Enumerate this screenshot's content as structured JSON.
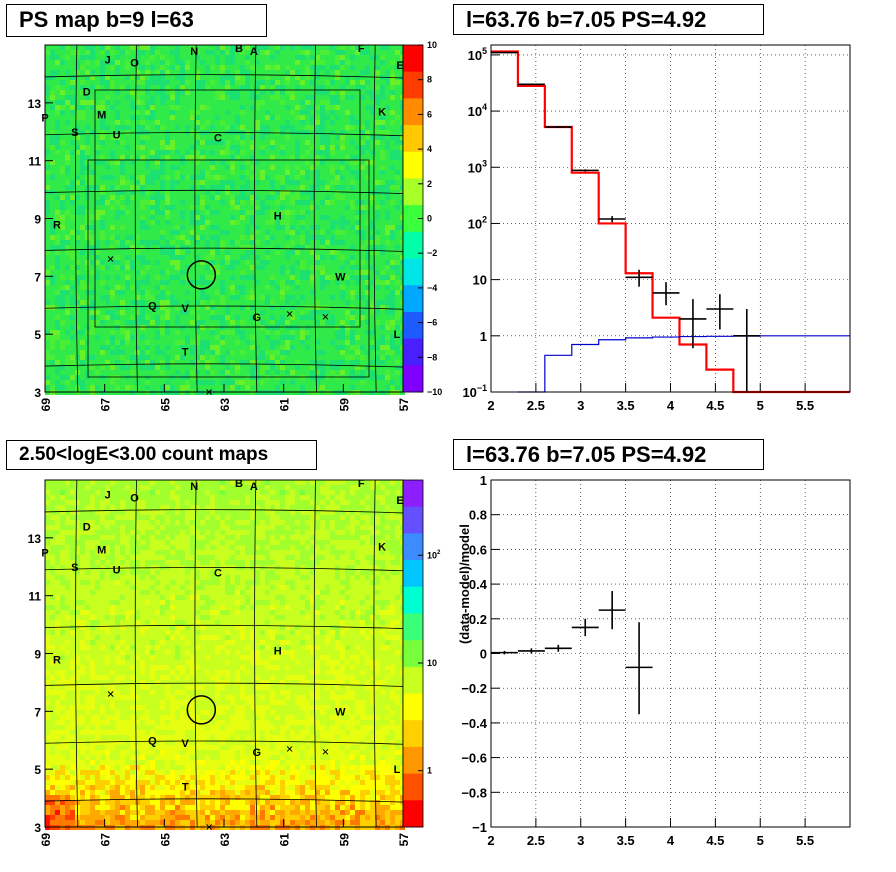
{
  "panels": {
    "top_left_title": "PS map b=9 l=63",
    "top_right_title": "l=63.76 b=7.05 PS=4.92",
    "bottom_left_title": "2.50<logE<3.00 count maps",
    "bottom_right_title": "l=63.76 b=7.05 PS=4.92"
  },
  "chart_data": [
    {
      "id": "ps-map",
      "type": "heatmap",
      "title": "PS map b=9 l=63",
      "x_ticks": [
        "69",
        "67",
        "65",
        "63",
        "61",
        "59",
        "57"
      ],
      "y_ticks": [
        "3",
        "5",
        "7",
        "9",
        "11",
        "13"
      ],
      "xlim": [
        69,
        57
      ],
      "ylim": [
        3,
        15
      ],
      "colorbar": {
        "range": [
          -10,
          10
        ],
        "ticks": [
          "10",
          "8",
          "6",
          "4",
          "2",
          "0",
          "−2",
          "−4",
          "−6",
          "−8",
          "−10"
        ],
        "palette": [
          "#8000ff",
          "#4a1fff",
          "#1c5cff",
          "#00a8ff",
          "#00e5e5",
          "#00ffa8",
          "#3cff3c",
          "#a8ff28",
          "#ffff00",
          "#ffc800",
          "#ff8c00",
          "#ff3c00",
          "#ff0000"
        ]
      },
      "dominant_color": "#2ee84a",
      "source_labels": [
        {
          "text": "J",
          "l": 66.9,
          "b": 14.5
        },
        {
          "text": "O",
          "l": 66.0,
          "b": 14.4
        },
        {
          "text": "N",
          "l": 64.0,
          "b": 14.8
        },
        {
          "text": "B",
          "l": 62.5,
          "b": 14.9
        },
        {
          "text": "A",
          "l": 62.0,
          "b": 14.8
        },
        {
          "text": "F",
          "l": 58.4,
          "b": 14.9
        },
        {
          "text": "E",
          "l": 57.1,
          "b": 14.3
        },
        {
          "text": "D",
          "l": 67.6,
          "b": 13.4
        },
        {
          "text": "K",
          "l": 57.7,
          "b": 12.7
        },
        {
          "text": "P",
          "l": 69.0,
          "b": 12.5
        },
        {
          "text": "M",
          "l": 67.1,
          "b": 12.6
        },
        {
          "text": "S",
          "l": 68.0,
          "b": 12.0
        },
        {
          "text": "U",
          "l": 66.6,
          "b": 11.9
        },
        {
          "text": "C",
          "l": 63.2,
          "b": 11.8
        },
        {
          "text": "H",
          "l": 61.2,
          "b": 9.1
        },
        {
          "text": "R",
          "l": 68.6,
          "b": 8.8
        },
        {
          "text": "W",
          "l": 59.1,
          "b": 7.0
        },
        {
          "text": "Q",
          "l": 65.4,
          "b": 6.0
        },
        {
          "text": "V",
          "l": 64.3,
          "b": 5.9
        },
        {
          "text": "G",
          "l": 61.9,
          "b": 5.6
        },
        {
          "text": "L",
          "l": 57.2,
          "b": 5.0
        },
        {
          "text": "T",
          "l": 64.3,
          "b": 4.4
        }
      ],
      "markers": [
        {
          "l": 66.8,
          "b": 7.6
        },
        {
          "l": 60.8,
          "b": 5.7
        },
        {
          "l": 59.6,
          "b": 5.6
        },
        {
          "l": 63.5,
          "b": 3.0
        }
      ],
      "circle": {
        "l": 63.76,
        "b": 7.05
      }
    },
    {
      "id": "spectrum",
      "type": "line",
      "title": "l=63.76 b=7.05 PS=4.92",
      "xlim": [
        2,
        6
      ],
      "ylim": [
        0.1,
        150000
      ],
      "y_scale": "log",
      "x_ticks": [
        "2",
        "2.5",
        "3",
        "3.5",
        "4",
        "4.5",
        "5",
        "5.5"
      ],
      "y_ticks": [
        {
          "value": 0.1,
          "base": "10",
          "exp": "−1"
        },
        {
          "value": 1,
          "base": "1",
          "exp": ""
        },
        {
          "value": 10,
          "base": "10",
          "exp": ""
        },
        {
          "value": 100,
          "base": "10",
          "exp": "2"
        },
        {
          "value": 1000,
          "base": "10",
          "exp": "3"
        },
        {
          "value": 10000,
          "base": "10",
          "exp": "4"
        },
        {
          "value": 100000,
          "base": "10",
          "exp": "5"
        }
      ],
      "grid": true,
      "data_points": [
        {
          "x": 2.15,
          "y": 110000,
          "xerr": 0.15,
          "ylo": 109000,
          "yhi": 111000
        },
        {
          "x": 2.45,
          "y": 30000,
          "xerr": 0.15,
          "ylo": 29500,
          "yhi": 30500
        },
        {
          "x": 2.75,
          "y": 5200,
          "xerr": 0.15,
          "ylo": 5000,
          "yhi": 5400
        },
        {
          "x": 3.05,
          "y": 880,
          "xerr": 0.15,
          "ylo": 840,
          "yhi": 920
        },
        {
          "x": 3.35,
          "y": 120,
          "xerr": 0.15,
          "ylo": 105,
          "yhi": 135
        },
        {
          "x": 3.65,
          "y": 11,
          "xerr": 0.15,
          "ylo": 7.5,
          "yhi": 15
        },
        {
          "x": 3.95,
          "y": 5.8,
          "xerr": 0.15,
          "ylo": 3.5,
          "yhi": 9
        },
        {
          "x": 4.25,
          "y": 2.0,
          "xerr": 0.15,
          "ylo": 0.6,
          "yhi": 4.5
        },
        {
          "x": 4.55,
          "y": 3.0,
          "xerr": 0.15,
          "ylo": 1.3,
          "yhi": 5.5
        },
        {
          "x": 4.85,
          "y": 1.0,
          "xerr": 0.15,
          "ylo": 0.1,
          "yhi": 3.0
        }
      ],
      "series": [
        {
          "color": "#ff0000",
          "edges": [
            2.0,
            2.3,
            2.6,
            2.9,
            3.2,
            3.5,
            3.8,
            4.1,
            4.4,
            4.7,
            6.0
          ],
          "values": [
            115000,
            28000,
            5200,
            800,
            100,
            13,
            2.1,
            0.7,
            0.25,
            0.1
          ]
        },
        {
          "color": "#0000cc",
          "edges": [
            2.3,
            2.6,
            2.9,
            3.2,
            3.5,
            3.8,
            4.1,
            4.4,
            4.7,
            5.0,
            6.0
          ],
          "values": [
            0.1,
            0.45,
            0.7,
            0.85,
            0.92,
            0.95,
            0.97,
            0.98,
            0.99,
            1.0
          ]
        }
      ]
    },
    {
      "id": "count-map",
      "type": "heatmap",
      "title": "2.50<logE<3.00 count maps",
      "x_ticks": [
        "69",
        "67",
        "65",
        "63",
        "61",
        "59",
        "57"
      ],
      "y_ticks": [
        "3",
        "5",
        "7",
        "9",
        "11",
        "13"
      ],
      "xlim": [
        69,
        57
      ],
      "ylim": [
        3,
        15
      ],
      "colorbar": {
        "scale": "log",
        "ticks": [
          {
            "value": 100,
            "base": "10",
            "exp": "2"
          },
          {
            "value": 10,
            "base": "10",
            "exp": ""
          },
          {
            "value": 1,
            "base": "1",
            "exp": ""
          }
        ],
        "palette": [
          "#ff0000",
          "#ff5000",
          "#ff9800",
          "#ffd000",
          "#ffff00",
          "#c8ff1e",
          "#78ff3c",
          "#3cff78",
          "#00ffd0",
          "#00c8ff",
          "#3c8cff",
          "#6450ff",
          "#8c1eff"
        ]
      },
      "source_labels": [
        {
          "text": "J",
          "l": 66.9,
          "b": 14.5
        },
        {
          "text": "O",
          "l": 66.0,
          "b": 14.4
        },
        {
          "text": "N",
          "l": 64.0,
          "b": 14.8
        },
        {
          "text": "B",
          "l": 62.5,
          "b": 14.9
        },
        {
          "text": "A",
          "l": 62.0,
          "b": 14.8
        },
        {
          "text": "F",
          "l": 58.4,
          "b": 14.9
        },
        {
          "text": "E",
          "l": 57.1,
          "b": 14.3
        },
        {
          "text": "D",
          "l": 67.6,
          "b": 13.4
        },
        {
          "text": "K",
          "l": 57.7,
          "b": 12.7
        },
        {
          "text": "P",
          "l": 69.0,
          "b": 12.5
        },
        {
          "text": "M",
          "l": 67.1,
          "b": 12.6
        },
        {
          "text": "S",
          "l": 68.0,
          "b": 12.0
        },
        {
          "text": "U",
          "l": 66.6,
          "b": 11.9
        },
        {
          "text": "C",
          "l": 63.2,
          "b": 11.8
        },
        {
          "text": "H",
          "l": 61.2,
          "b": 9.1
        },
        {
          "text": "R",
          "l": 68.6,
          "b": 8.8
        },
        {
          "text": "W",
          "l": 59.1,
          "b": 7.0
        },
        {
          "text": "Q",
          "l": 65.4,
          "b": 6.0
        },
        {
          "text": "V",
          "l": 64.3,
          "b": 5.9
        },
        {
          "text": "G",
          "l": 61.9,
          "b": 5.6
        },
        {
          "text": "L",
          "l": 57.2,
          "b": 5.0
        },
        {
          "text": "T",
          "l": 64.3,
          "b": 4.4
        }
      ],
      "markers": [
        {
          "l": 66.8,
          "b": 7.6
        },
        {
          "l": 60.8,
          "b": 5.7
        },
        {
          "l": 59.6,
          "b": 5.6
        },
        {
          "l": 63.5,
          "b": 3.0
        }
      ],
      "circle": {
        "l": 63.76,
        "b": 7.05
      }
    },
    {
      "id": "residual",
      "type": "scatter",
      "title": "l=63.76 b=7.05 PS=4.92",
      "ylabel": "(data-model)/model",
      "xlim": [
        2,
        6
      ],
      "ylim": [
        -1,
        1
      ],
      "x_ticks": [
        "2",
        "2.5",
        "3",
        "3.5",
        "4",
        "4.5",
        "5",
        "5.5"
      ],
      "y_ticks": [
        "1",
        "0.8",
        "0.6",
        "0.4",
        "0.2",
        "0",
        "−0.2",
        "−0.4",
        "−0.6",
        "−0.8",
        "−1"
      ],
      "grid": true,
      "data_points": [
        {
          "x": 2.15,
          "y": 0.005,
          "xerr": 0.15,
          "ylo": -0.005,
          "yhi": 0.015
        },
        {
          "x": 2.45,
          "y": 0.015,
          "xerr": 0.15,
          "ylo": 0.0,
          "yhi": 0.03
        },
        {
          "x": 2.75,
          "y": 0.03,
          "xerr": 0.15,
          "ylo": 0.01,
          "yhi": 0.05
        },
        {
          "x": 3.05,
          "y": 0.15,
          "xerr": 0.15,
          "ylo": 0.1,
          "yhi": 0.2
        },
        {
          "x": 3.35,
          "y": 0.25,
          "xerr": 0.15,
          "ylo": 0.14,
          "yhi": 0.36
        },
        {
          "x": 3.65,
          "y": -0.08,
          "xerr": 0.15,
          "ylo": -0.35,
          "yhi": 0.18
        }
      ]
    }
  ]
}
